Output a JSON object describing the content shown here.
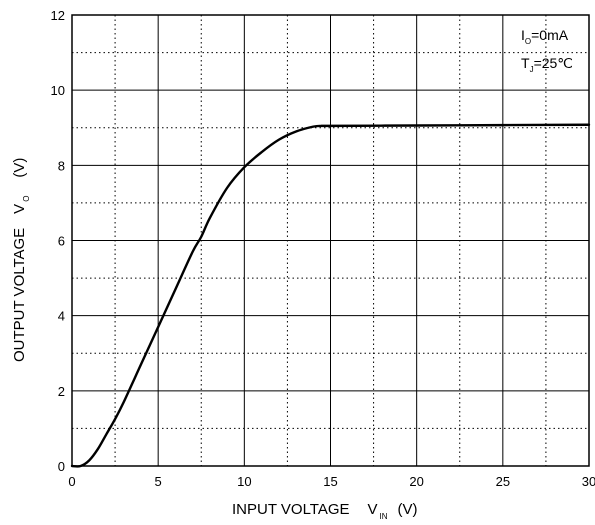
{
  "chart_data": {
    "type": "line",
    "xlabel": {
      "main": "INPUT VOLTAGE",
      "symbol": "V",
      "subscript": "IN",
      "unit": "(V)"
    },
    "ylabel": {
      "main": "OUTPUT VOLTAGE",
      "symbol": "V",
      "subscript": "O",
      "unit": "(V)"
    },
    "xlim": [
      0,
      30
    ],
    "ylim": [
      0,
      12
    ],
    "x_ticks": [
      "0",
      "5",
      "10",
      "15",
      "20",
      "25",
      "30"
    ],
    "y_ticks": [
      "0",
      "2",
      "4",
      "6",
      "8",
      "10",
      "12"
    ],
    "grid": true,
    "annotations": [
      {
        "main": "I",
        "sub": "O",
        "rest": "=0mA"
      },
      {
        "main": "T",
        "sub": "J",
        "rest": "=25℃"
      }
    ],
    "series": [
      {
        "x": [
          0,
          0.5,
          1,
          1.5,
          2,
          2.5,
          3,
          4,
          5,
          6,
          7,
          7.5,
          8,
          9,
          10,
          11,
          12,
          13,
          14,
          14.5,
          15,
          20,
          25,
          30
        ],
        "y": [
          0,
          0,
          0.15,
          0.45,
          0.85,
          1.25,
          1.7,
          2.7,
          3.7,
          4.7,
          5.7,
          6.1,
          6.6,
          7.4,
          7.95,
          8.35,
          8.68,
          8.9,
          9.03,
          9.05,
          9.05,
          9.06,
          9.07,
          9.08
        ]
      }
    ]
  }
}
